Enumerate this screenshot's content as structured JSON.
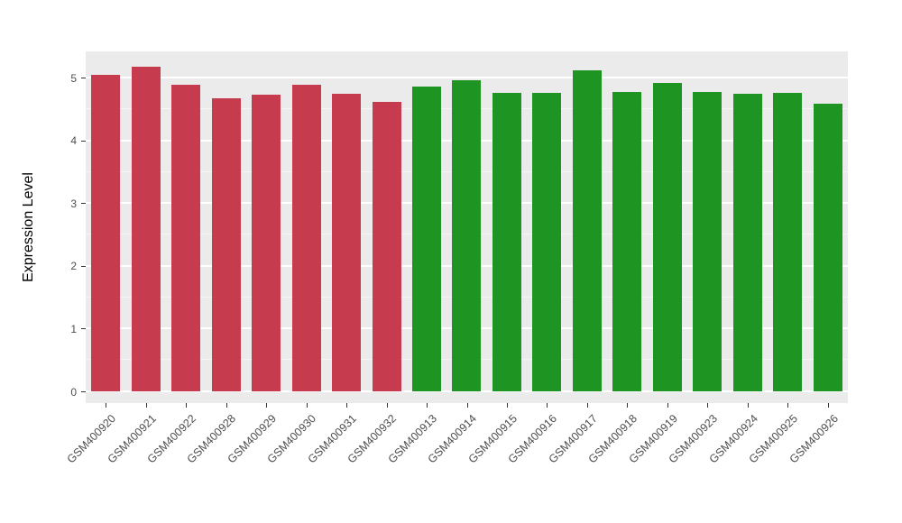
{
  "chart_data": {
    "type": "bar",
    "title": "",
    "xlabel": "",
    "ylabel": "Expression Level",
    "ylim": [
      0,
      5.42
    ],
    "yticks": [
      0,
      1,
      2,
      3,
      4,
      5
    ],
    "yticks_minor": [
      0.5,
      1.5,
      2.5,
      3.5,
      4.5
    ],
    "grid": true,
    "legend_position": "none",
    "panel_background": "#EBEBEB",
    "grid_major_color": "#FFFFFF",
    "grid_minor_color": "rgba(255,255,255,0.55)",
    "tick_mark_color": "#333333",
    "tick_label_color": "#4d4d4d",
    "group_colors": {
      "group_1_red": "#C73B4E",
      "group_2_green": "#1E9422"
    },
    "categories": [
      "GSM400920",
      "GSM400921",
      "GSM400922",
      "GSM400928",
      "GSM400929",
      "GSM400930",
      "GSM400931",
      "GSM400932",
      "GSM400913",
      "GSM400914",
      "GSM400915",
      "GSM400916",
      "GSM400917",
      "GSM400918",
      "GSM400919",
      "GSM400923",
      "GSM400924",
      "GSM400925",
      "GSM400926"
    ],
    "series": [
      {
        "name": "Expression Level",
        "values": [
          5.05,
          5.17,
          4.89,
          4.67,
          4.73,
          4.89,
          4.74,
          4.62,
          4.86,
          4.96,
          4.76,
          4.76,
          5.12,
          4.78,
          4.91,
          4.77,
          4.74,
          4.76,
          4.58
        ]
      }
    ],
    "bar_colors": [
      "#C73B4E",
      "#C73B4E",
      "#C73B4E",
      "#C73B4E",
      "#C73B4E",
      "#C73B4E",
      "#C73B4E",
      "#C73B4E",
      "#1E9422",
      "#1E9422",
      "#1E9422",
      "#1E9422",
      "#1E9422",
      "#1E9422",
      "#1E9422",
      "#1E9422",
      "#1E9422",
      "#1E9422",
      "#1E9422"
    ]
  }
}
